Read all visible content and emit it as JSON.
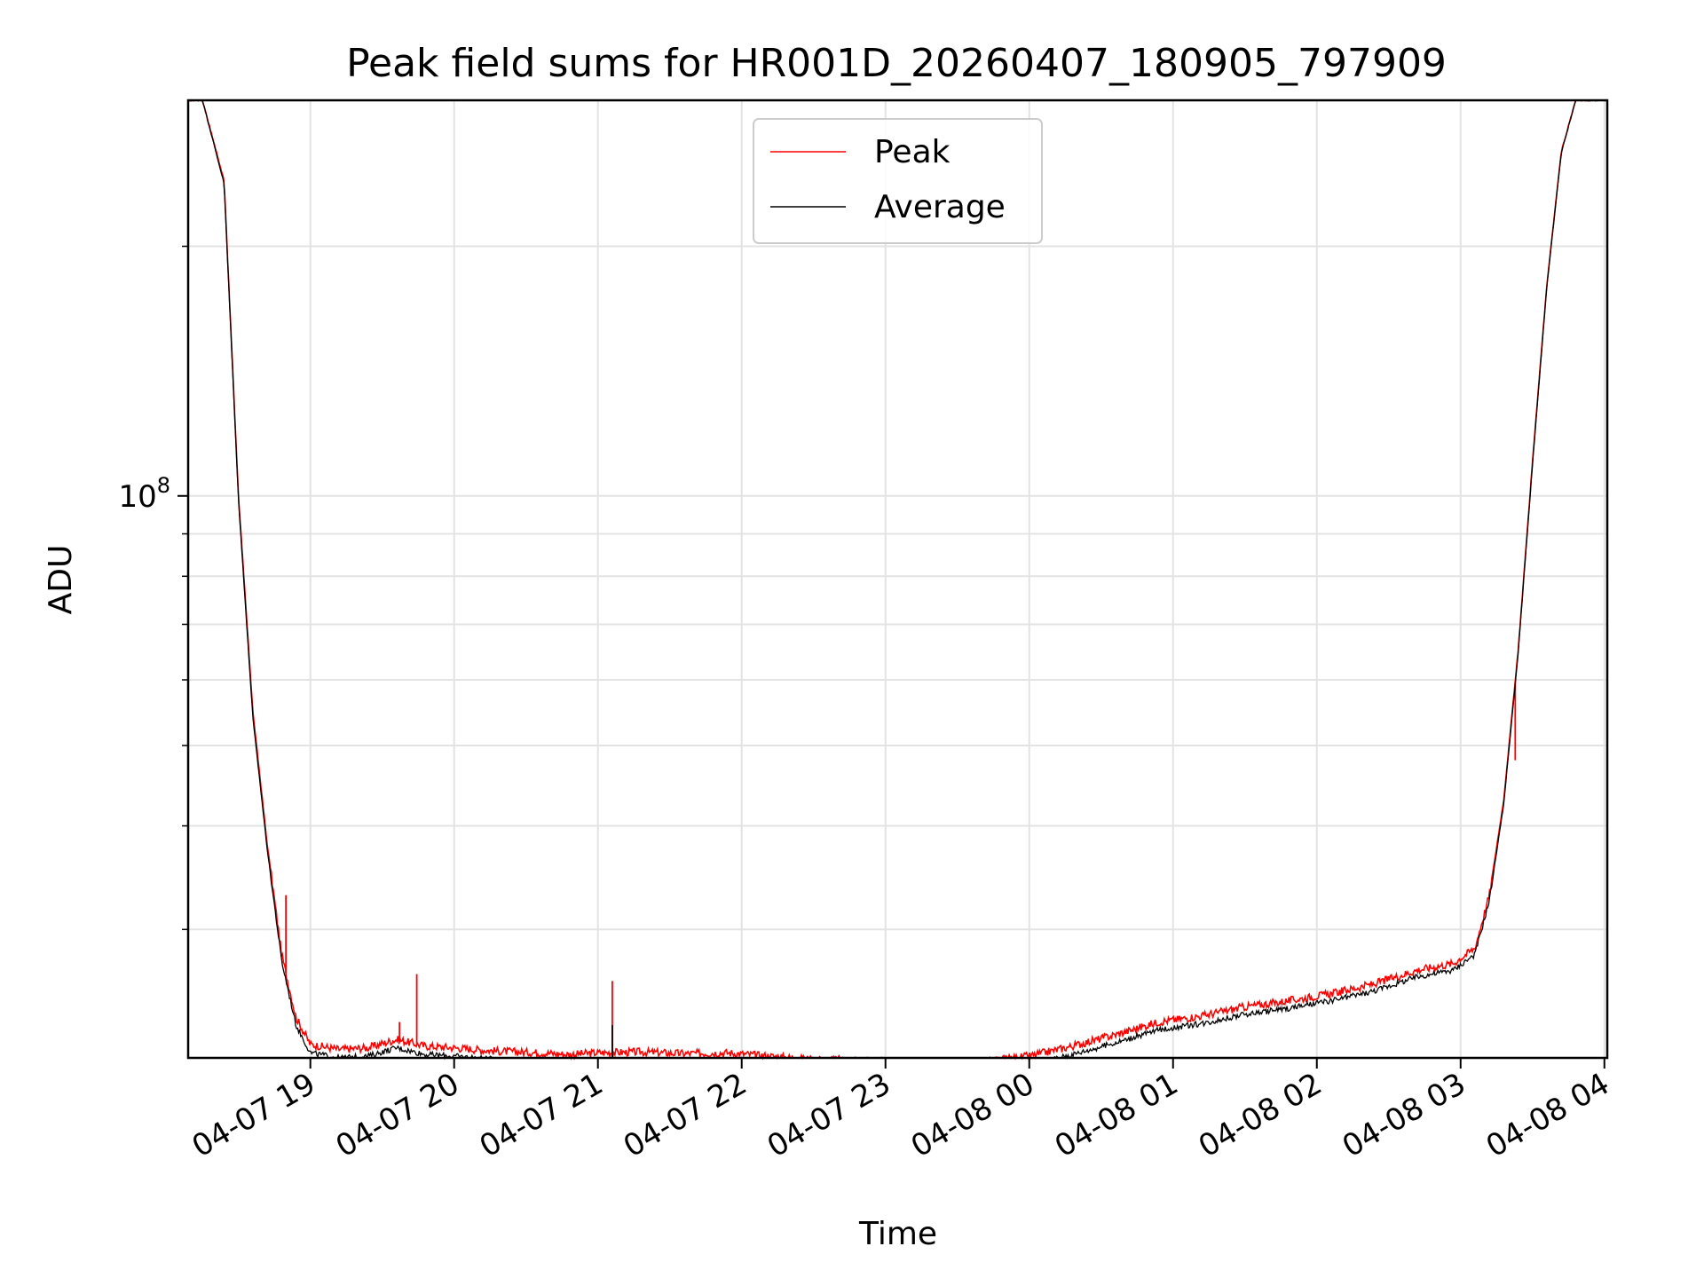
{
  "chart_data": {
    "type": "line",
    "title": "Peak field sums for HR001D_20260407_180905_797909",
    "xlabel": "Time",
    "ylabel": "ADU",
    "yscale": "log",
    "ylim": [
      21000000,
      300000000
    ],
    "xlim_hours": [
      18.15,
      28.02
    ],
    "grid": true,
    "legend_location": "upper center",
    "x_ticks": [
      {
        "hours": 19,
        "label": "04-07 19"
      },
      {
        "hours": 20,
        "label": "04-07 20"
      },
      {
        "hours": 21,
        "label": "04-07 21"
      },
      {
        "hours": 22,
        "label": "04-07 22"
      },
      {
        "hours": 23,
        "label": "04-07 23"
      },
      {
        "hours": 24,
        "label": "04-08 00"
      },
      {
        "hours": 25,
        "label": "04-08 01"
      },
      {
        "hours": 26,
        "label": "04-08 02"
      },
      {
        "hours": 27,
        "label": "04-08 03"
      },
      {
        "hours": 28,
        "label": "04-08 04"
      }
    ],
    "y_major_ticks": [
      {
        "value": 100000000,
        "base": "10",
        "exponent": "8"
      }
    ],
    "y_minor_ticks": [
      30000000,
      40000000,
      50000000,
      60000000,
      70000000,
      80000000,
      90000000,
      200000000
    ],
    "series": [
      {
        "name": "Peak",
        "color": "#ff0000",
        "x_hours": [
          18.15,
          18.25,
          18.4,
          18.5,
          18.6,
          18.7,
          18.8,
          18.9,
          19.0,
          19.2,
          19.4,
          19.6,
          19.8,
          20.0,
          20.3,
          20.6,
          20.8,
          21.0,
          21.3,
          21.6,
          21.9,
          22.2,
          22.5,
          22.8,
          23.1,
          23.4,
          23.7,
          24.0,
          24.3,
          24.6,
          24.9,
          25.2,
          25.5,
          25.8,
          26.1,
          26.4,
          26.7,
          26.95,
          27.1,
          27.2,
          27.3,
          27.4,
          27.5,
          27.6,
          27.7,
          27.8,
          27.9,
          28.02
        ],
        "values": [
          300000000,
          300000000,
          240000000,
          100000000,
          55000000,
          38000000,
          28000000,
          23500000,
          21800000,
          21500000,
          21600000,
          22100000,
          21700000,
          21600000,
          21400000,
          21300000,
          21200000,
          21300000,
          21350000,
          21250000,
          21300000,
          21100000,
          20900000,
          20900000,
          20750000,
          20600000,
          20800000,
          21100000,
          21700000,
          22400000,
          23200000,
          23600000,
          24200000,
          24600000,
          25100000,
          25800000,
          26800000,
          27300000,
          28500000,
          33000000,
          43000000,
          65000000,
          110000000,
          180000000,
          260000000,
          300000000,
          300000000,
          300000000
        ],
        "spikes": [
          {
            "x_hours": 18.83,
            "value": 33000000
          },
          {
            "x_hours": 19.62,
            "value": 23200000
          },
          {
            "x_hours": 19.74,
            "value": 26500000
          },
          {
            "x_hours": 21.1,
            "value": 26000000
          },
          {
            "x_hours": 27.38,
            "value": 48000000
          }
        ]
      },
      {
        "name": "Average",
        "color": "#000000",
        "x_hours": [
          18.15,
          18.25,
          18.4,
          18.5,
          18.6,
          18.7,
          18.8,
          18.9,
          19.0,
          19.2,
          19.4,
          19.6,
          19.8,
          20.0,
          20.3,
          20.6,
          20.8,
          21.0,
          21.3,
          21.6,
          21.9,
          22.2,
          22.5,
          22.8,
          23.1,
          23.4,
          23.7,
          24.0,
          24.3,
          24.6,
          24.9,
          25.2,
          25.5,
          25.8,
          26.1,
          26.4,
          26.7,
          26.95,
          27.1,
          27.2,
          27.3,
          27.4,
          27.5,
          27.6,
          27.7,
          27.8,
          27.9,
          28.02
        ],
        "values": [
          300000000,
          300000000,
          238000000,
          99000000,
          54000000,
          37500000,
          27500000,
          23000000,
          21300000,
          21000000,
          21100000,
          21600000,
          21200000,
          21100000,
          20900000,
          20800000,
          20700000,
          20800000,
          20850000,
          20750000,
          20800000,
          20600000,
          20400000,
          20400000,
          20250000,
          20100000,
          20300000,
          20600000,
          21200000,
          21900000,
          22700000,
          23100000,
          23700000,
          24100000,
          24600000,
          25300000,
          26300000,
          26800000,
          28000000,
          32500000,
          42500000,
          64500000,
          109000000,
          179000000,
          259000000,
          300000000,
          300000000,
          300000000
        ],
        "spikes": [
          {
            "x_hours": 21.1,
            "value": 23000000
          }
        ]
      }
    ]
  }
}
